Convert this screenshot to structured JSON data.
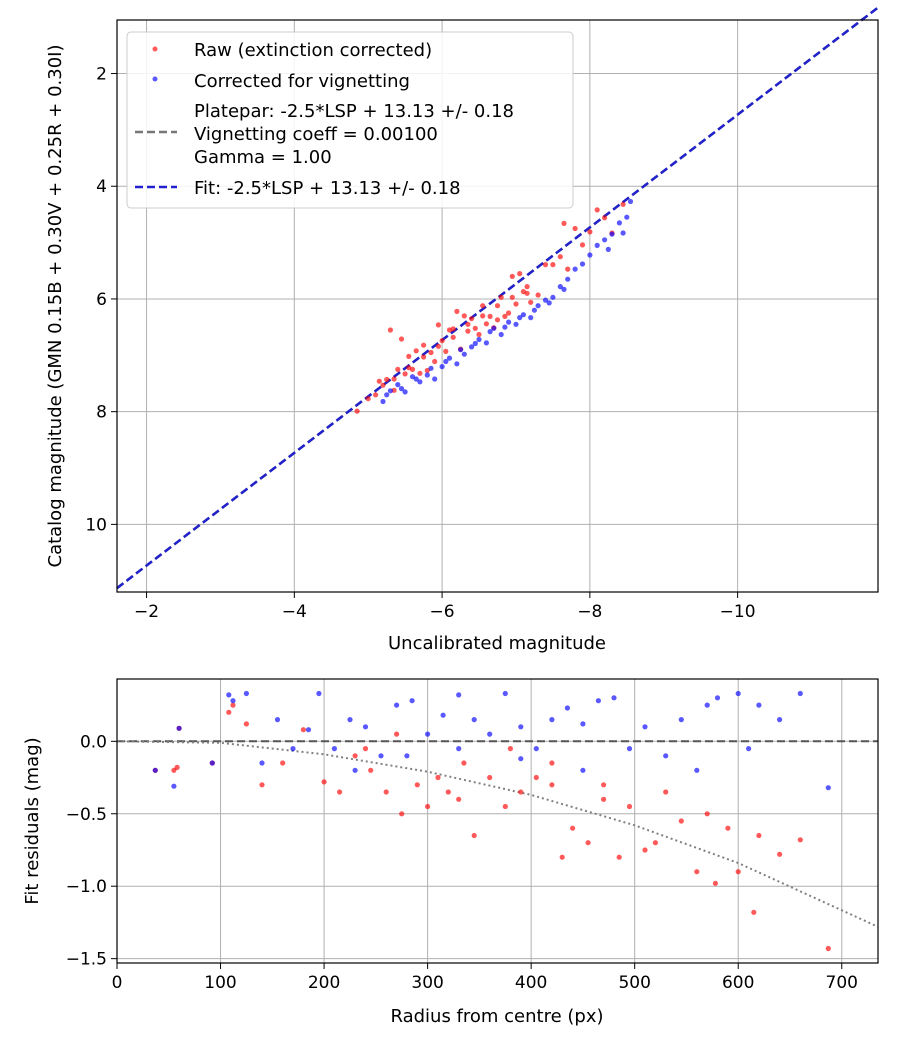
{
  "colors": {
    "raw": "#ff0000",
    "corrected": "#0000ff",
    "fit_line": "#2222cc",
    "platepar_line": "#777777",
    "grid": "#b0b0b0",
    "zero_line": "#555555",
    "vignetting_curve": "#808080"
  },
  "chart_data": [
    {
      "type": "scatter",
      "title": "",
      "xlabel": "Uncalibrated magnitude",
      "ylabel": "Catalog magnitude (GMN 0.15B + 0.30V + 0.25R + 0.30I)",
      "xlim": [
        -1.6,
        -11.9
      ],
      "ylim": [
        11.2,
        1.05
      ],
      "xticks": [
        -2,
        -4,
        -6,
        -8,
        -10
      ],
      "xtick_labels": [
        "−2",
        "−4",
        "−6",
        "−8",
        "−10"
      ],
      "yticks": [
        2,
        4,
        6,
        8,
        10
      ],
      "ytick_labels": [
        "2",
        "4",
        "6",
        "8",
        "10"
      ],
      "grid": true,
      "legend_position": "top-left",
      "legend": [
        {
          "label": "Raw (extinction corrected)",
          "kind": "marker",
          "color": "#ff0000"
        },
        {
          "label": "Corrected for vignetting",
          "kind": "marker",
          "color": "#0000ff"
        },
        {
          "label": "Platepar: -2.5*LSP + 13.13 +/- 0.18",
          "label2": "Vignetting coeff = 0.00100",
          "label3": "Gamma = 1.00",
          "kind": "dashed",
          "color": "#777777"
        },
        {
          "label": "Fit: -2.5*LSP + 13.13 +/- 0.18",
          "kind": "dashed",
          "color": "#2222cc"
        }
      ],
      "lines": [
        {
          "name": "Platepar",
          "x": [
            -1.6,
            -11.9
          ],
          "y": [
            11.13,
            0.83
          ]
        },
        {
          "name": "Fit",
          "x": [
            -1.6,
            -11.9
          ],
          "y": [
            11.13,
            0.83
          ]
        }
      ],
      "series": [
        {
          "name": "Raw (extinction corrected)",
          "points": [
            [
              -4.85,
              7.99
            ],
            [
              -5.0,
              7.77
            ],
            [
              -5.1,
              7.7
            ],
            [
              -5.2,
              7.53
            ],
            [
              -5.25,
              7.43
            ],
            [
              -5.3,
              6.55
            ],
            [
              -5.35,
              7.62
            ],
            [
              -5.4,
              7.25
            ],
            [
              -5.45,
              6.71
            ],
            [
              -5.5,
              7.33
            ],
            [
              -5.55,
              7.02
            ],
            [
              -5.6,
              7.25
            ],
            [
              -5.65,
              6.92
            ],
            [
              -5.7,
              7.32
            ],
            [
              -5.75,
              6.82
            ],
            [
              -5.8,
              7.27
            ],
            [
              -5.85,
              6.95
            ],
            [
              -5.9,
              7.11
            ],
            [
              -5.95,
              6.46
            ],
            [
              -6.0,
              6.74
            ],
            [
              -6.05,
              6.93
            ],
            [
              -6.1,
              6.55
            ],
            [
              -6.15,
              6.53
            ],
            [
              -6.2,
              6.22
            ],
            [
              -6.25,
              6.89
            ],
            [
              -6.3,
              6.3
            ],
            [
              -6.35,
              6.57
            ],
            [
              -6.4,
              6.35
            ],
            [
              -6.45,
              6.52
            ],
            [
              -6.5,
              6.63
            ],
            [
              -6.55,
              6.12
            ],
            [
              -6.6,
              6.44
            ],
            [
              -6.65,
              6.31
            ],
            [
              -6.7,
              6.51
            ],
            [
              -6.75,
              6.37
            ],
            [
              -6.8,
              5.97
            ],
            [
              -6.85,
              6.31
            ],
            [
              -6.9,
              6.25
            ],
            [
              -6.95,
              5.6
            ],
            [
              -7.0,
              6.09
            ],
            [
              -7.05,
              5.55
            ],
            [
              -7.1,
              5.87
            ],
            [
              -7.15,
              5.9
            ],
            [
              -7.2,
              6.06
            ],
            [
              -7.3,
              5.93
            ],
            [
              -7.4,
              5.39
            ],
            [
              -7.5,
              5.39
            ],
            [
              -7.6,
              5.25
            ],
            [
              -7.65,
              4.66
            ],
            [
              -7.7,
              5.47
            ],
            [
              -7.8,
              4.75
            ],
            [
              -7.9,
              5.04
            ],
            [
              -8.0,
              4.81
            ],
            [
              -8.1,
              4.42
            ],
            [
              -8.2,
              4.56
            ],
            [
              -8.3,
              4.83
            ],
            [
              -8.45,
              4.32
            ],
            [
              -5.15,
              7.46
            ],
            [
              -5.35,
              7.42
            ],
            [
              -5.55,
              7.22
            ],
            [
              -5.75,
              7.03
            ],
            [
              -5.95,
              6.84
            ],
            [
              -6.15,
              6.68
            ],
            [
              -6.35,
              6.45
            ],
            [
              -6.55,
              6.3
            ],
            [
              -6.75,
              6.12
            ],
            [
              -6.95,
              5.97
            ],
            [
              -7.15,
              5.78
            ]
          ]
        },
        {
          "name": "Corrected for vignetting",
          "points": [
            [
              -5.2,
              7.82
            ],
            [
              -5.3,
              7.63
            ],
            [
              -5.4,
              7.52
            ],
            [
              -5.5,
              7.65
            ],
            [
              -5.6,
              7.38
            ],
            [
              -5.7,
              7.47
            ],
            [
              -5.8,
              7.35
            ],
            [
              -5.9,
              7.42
            ],
            [
              -6.0,
              7.2
            ],
            [
              -6.1,
              7.05
            ],
            [
              -6.2,
              7.15
            ],
            [
              -6.3,
              6.98
            ],
            [
              -6.4,
              6.85
            ],
            [
              -6.5,
              6.72
            ],
            [
              -6.6,
              6.78
            ],
            [
              -6.7,
              6.52
            ],
            [
              -6.8,
              6.63
            ],
            [
              -6.9,
              6.41
            ],
            [
              -7.0,
              6.45
            ],
            [
              -7.1,
              6.28
            ],
            [
              -7.2,
              6.33
            ],
            [
              -7.3,
              6.12
            ],
            [
              -7.4,
              6.02
            ],
            [
              -7.5,
              5.97
            ],
            [
              -7.6,
              5.78
            ],
            [
              -7.7,
              5.65
            ],
            [
              -7.8,
              5.47
            ],
            [
              -7.9,
              5.38
            ],
            [
              -8.0,
              5.22
            ],
            [
              -8.1,
              5.05
            ],
            [
              -8.2,
              4.95
            ],
            [
              -8.3,
              4.85
            ],
            [
              -8.4,
              4.65
            ],
            [
              -8.5,
              4.55
            ],
            [
              -8.55,
              4.27
            ],
            [
              -5.25,
              7.7
            ],
            [
              -5.45,
              7.59
            ],
            [
              -5.65,
              7.42
            ],
            [
              -5.85,
              7.23
            ],
            [
              -6.05,
              7.11
            ],
            [
              -6.25,
              6.9
            ],
            [
              -6.45,
              6.79
            ],
            [
              -6.65,
              6.58
            ],
            [
              -6.85,
              6.5
            ],
            [
              -7.05,
              6.33
            ],
            [
              -7.25,
              6.2
            ],
            [
              -7.45,
              6.07
            ],
            [
              -7.65,
              5.83
            ],
            [
              -8.25,
              5.12
            ],
            [
              -8.45,
              4.83
            ]
          ]
        }
      ]
    },
    {
      "type": "scatter",
      "title": "",
      "xlabel": "Radius from centre (px)",
      "ylabel": "Fit residuals (mag)",
      "xlim": [
        0,
        735
      ],
      "ylim": [
        -1.53,
        0.43
      ],
      "xticks": [
        0,
        100,
        200,
        300,
        400,
        500,
        600,
        700
      ],
      "xtick_labels": [
        "0",
        "100",
        "200",
        "300",
        "400",
        "500",
        "600",
        "700"
      ],
      "yticks": [
        0.0,
        -0.5,
        -1.0,
        -1.5
      ],
      "ytick_labels": [
        "0.0",
        "−0.5",
        "−1.0",
        "−1.5"
      ],
      "grid": true,
      "lines": [
        {
          "name": "zero",
          "x": [
            0,
            735
          ],
          "y": [
            0,
            0
          ]
        },
        {
          "name": "vignetting model",
          "x": [
            0,
            100,
            200,
            300,
            400,
            500,
            600,
            735
          ],
          "y": [
            0,
            -0.01,
            -0.09,
            -0.21,
            -0.37,
            -0.58,
            -0.84,
            -1.28
          ]
        }
      ],
      "series": [
        {
          "name": "Raw",
          "points": [
            [
              37,
              -0.2
            ],
            [
              55,
              -0.2
            ],
            [
              58,
              -0.18
            ],
            [
              60,
              0.09
            ],
            [
              92,
              -0.15
            ],
            [
              108,
              0.2
            ],
            [
              112,
              0.25
            ],
            [
              125,
              0.12
            ],
            [
              140,
              -0.3
            ],
            [
              160,
              -0.15
            ],
            [
              180,
              0.08
            ],
            [
              200,
              -0.28
            ],
            [
              215,
              -0.35
            ],
            [
              230,
              -0.1
            ],
            [
              245,
              -0.2
            ],
            [
              260,
              -0.35
            ],
            [
              275,
              -0.5
            ],
            [
              290,
              -0.3
            ],
            [
              300,
              -0.45
            ],
            [
              310,
              -0.25
            ],
            [
              320,
              -0.35
            ],
            [
              330,
              -0.4
            ],
            [
              345,
              -0.65
            ],
            [
              360,
              -0.25
            ],
            [
              375,
              -0.45
            ],
            [
              390,
              -0.35
            ],
            [
              405,
              -0.25
            ],
            [
              420,
              -0.3
            ],
            [
              430,
              -0.8
            ],
            [
              440,
              -0.6
            ],
            [
              455,
              -0.7
            ],
            [
              470,
              -0.4
            ],
            [
              485,
              -0.8
            ],
            [
              495,
              -0.45
            ],
            [
              510,
              -0.75
            ],
            [
              520,
              -0.7
            ],
            [
              545,
              -0.55
            ],
            [
              560,
              -0.9
            ],
            [
              578,
              -0.98
            ],
            [
              590,
              -0.6
            ],
            [
              600,
              -0.9
            ],
            [
              615,
              -1.18
            ],
            [
              620,
              -0.65
            ],
            [
              640,
              -0.78
            ],
            [
              660,
              -0.68
            ],
            [
              687,
              -1.43
            ],
            [
              240,
              -0.05
            ],
            [
              270,
              0.05
            ],
            [
              335,
              -0.15
            ],
            [
              380,
              -0.05
            ],
            [
              420,
              -0.15
            ],
            [
              470,
              -0.3
            ],
            [
              530,
              -0.35
            ],
            [
              570,
              -0.5
            ]
          ]
        },
        {
          "name": "Corrected",
          "points": [
            [
              37,
              -0.2
            ],
            [
              55,
              -0.31
            ],
            [
              60,
              0.09
            ],
            [
              92,
              -0.15
            ],
            [
              108,
              0.32
            ],
            [
              112,
              0.28
            ],
            [
              125,
              0.33
            ],
            [
              140,
              -0.15
            ],
            [
              155,
              0.15
            ],
            [
              170,
              -0.05
            ],
            [
              185,
              0.08
            ],
            [
              195,
              0.33
            ],
            [
              210,
              -0.05
            ],
            [
              225,
              0.15
            ],
            [
              240,
              0.1
            ],
            [
              255,
              -0.1
            ],
            [
              270,
              0.25
            ],
            [
              285,
              0.28
            ],
            [
              300,
              0.05
            ],
            [
              315,
              0.18
            ],
            [
              330,
              0.32
            ],
            [
              345,
              0.15
            ],
            [
              360,
              0.05
            ],
            [
              375,
              0.33
            ],
            [
              390,
              0.1
            ],
            [
              405,
              -0.05
            ],
            [
              420,
              0.15
            ],
            [
              435,
              0.23
            ],
            [
              450,
              0.12
            ],
            [
              465,
              0.28
            ],
            [
              480,
              0.3
            ],
            [
              495,
              -0.05
            ],
            [
              510,
              0.1
            ],
            [
              530,
              -0.1
            ],
            [
              545,
              0.15
            ],
            [
              560,
              -0.2
            ],
            [
              570,
              0.25
            ],
            [
              580,
              0.3
            ],
            [
              600,
              0.33
            ],
            [
              610,
              -0.05
            ],
            [
              620,
              0.25
            ],
            [
              640,
              0.15
            ],
            [
              660,
              0.33
            ],
            [
              687,
              -0.32
            ],
            [
              230,
              -0.2
            ],
            [
              280,
              -0.1
            ],
            [
              330,
              -0.05
            ],
            [
              390,
              -0.12
            ],
            [
              450,
              -0.2
            ]
          ]
        }
      ]
    }
  ]
}
